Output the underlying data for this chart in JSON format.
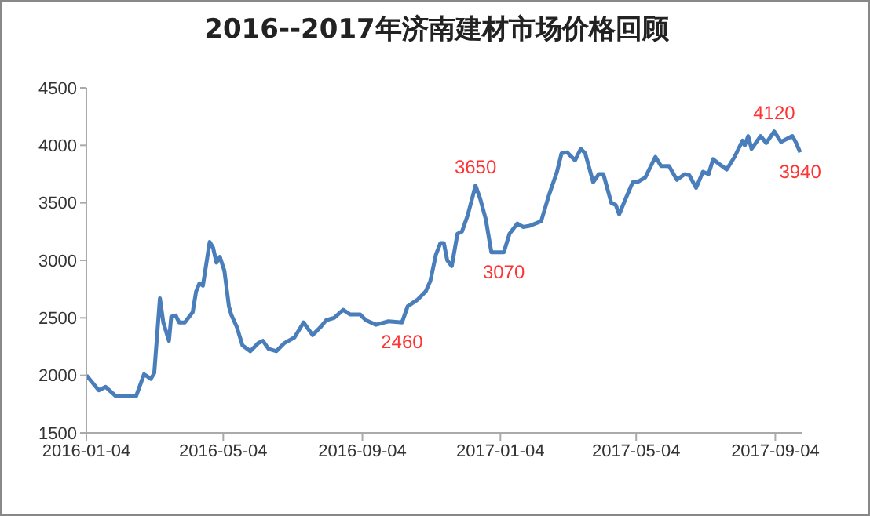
{
  "chart_data": {
    "type": "line",
    "title": "2016--2017年济南建材市场价格回顾",
    "x": [
      "2016-01-04",
      "2016-01-15",
      "2016-01-21",
      "2016-01-30",
      "2016-02-17",
      "2016-02-24",
      "2016-03-01",
      "2016-03-04",
      "2016-03-09",
      "2016-03-12",
      "2016-03-17",
      "2016-03-19",
      "2016-03-23",
      "2016-03-26",
      "2016-03-31",
      "2016-04-07",
      "2016-04-10",
      "2016-04-13",
      "2016-04-16",
      "2016-04-22",
      "2016-04-25",
      "2016-04-28",
      "2016-05-01",
      "2016-05-05",
      "2016-05-09",
      "2016-05-11",
      "2016-05-16",
      "2016-05-21",
      "2016-05-28",
      "2016-06-04",
      "2016-06-08",
      "2016-06-13",
      "2016-06-20",
      "2016-06-27",
      "2016-07-06",
      "2016-07-14",
      "2016-07-22",
      "2016-07-29",
      "2016-08-03",
      "2016-08-10",
      "2016-08-18",
      "2016-08-24",
      "2016-09-02",
      "2016-09-07",
      "2016-09-16",
      "2016-09-27",
      "2016-10-09",
      "2016-10-14",
      "2016-10-23",
      "2016-10-30",
      "2016-11-03",
      "2016-11-08",
      "2016-11-12",
      "2016-11-15",
      "2016-11-18",
      "2016-11-22",
      "2016-11-27",
      "2016-12-01",
      "2016-12-06",
      "2016-12-09",
      "2016-12-13",
      "2016-12-17",
      "2016-12-22",
      "2016-12-27",
      "2017-01-03",
      "2017-01-07",
      "2017-01-12",
      "2017-01-19",
      "2017-01-24",
      "2017-01-30",
      "2017-02-09",
      "2017-02-16",
      "2017-02-23",
      "2017-02-27",
      "2017-03-04",
      "2017-03-11",
      "2017-03-16",
      "2017-03-20",
      "2017-03-27",
      "2017-04-01",
      "2017-04-05",
      "2017-04-12",
      "2017-04-16",
      "2017-04-19",
      "2017-04-24",
      "2017-05-01",
      "2017-05-05",
      "2017-05-12",
      "2017-05-21",
      "2017-05-26",
      "2017-06-02",
      "2017-06-09",
      "2017-06-16",
      "2017-06-20",
      "2017-06-26",
      "2017-07-02",
      "2017-07-07",
      "2017-07-11",
      "2017-07-16",
      "2017-07-23",
      "2017-07-30",
      "2017-08-06",
      "2017-08-08",
      "2017-08-11",
      "2017-08-14",
      "2017-08-22",
      "2017-08-27",
      "2017-09-03",
      "2017-09-09",
      "2017-09-13",
      "2017-09-19",
      "2017-09-22",
      "2017-09-26"
    ],
    "series": [
      {
        "color": "#4a7ebb",
        "values": [
          2000,
          1870,
          1900,
          1820,
          1820,
          2010,
          1970,
          2020,
          2670,
          2460,
          2300,
          2510,
          2520,
          2460,
          2460,
          2550,
          2730,
          2800,
          2780,
          3160,
          3110,
          2980,
          3030,
          2910,
          2600,
          2530,
          2420,
          2260,
          2210,
          2280,
          2300,
          2230,
          2210,
          2280,
          2330,
          2460,
          2350,
          2420,
          2480,
          2500,
          2570,
          2530,
          2530,
          2480,
          2440,
          2470,
          2460,
          2600,
          2660,
          2730,
          2820,
          3050,
          3150,
          3150,
          3000,
          2950,
          3230,
          3250,
          3390,
          3500,
          3650,
          3540,
          3360,
          3070,
          3070,
          3070,
          3230,
          3320,
          3290,
          3300,
          3340,
          3570,
          3770,
          3930,
          3940,
          3870,
          3970,
          3930,
          3680,
          3750,
          3750,
          3500,
          3480,
          3400,
          3520,
          3680,
          3680,
          3720,
          3900,
          3820,
          3820,
          3700,
          3750,
          3740,
          3630,
          3770,
          3750,
          3880,
          3840,
          3790,
          3900,
          4040,
          4000,
          4080,
          3970,
          4080,
          4020,
          4120,
          4030,
          4050,
          4080,
          4030,
          3940
        ]
      }
    ],
    "xlim": [
      "2016-01-04",
      "2017-09-28"
    ],
    "xticks": [
      "2016-01-04",
      "2016-05-04",
      "2016-09-04",
      "2017-01-04",
      "2017-05-04",
      "2017-09-04"
    ],
    "ylim": [
      1500,
      4500
    ],
    "yticks": [
      1500,
      2000,
      2500,
      3000,
      3500,
      4000,
      4500
    ],
    "grid": false,
    "legend": false,
    "marker": "none",
    "line_style": "solid",
    "annotations": [
      {
        "text": "3650",
        "x": "2016-12-13",
        "y": 3650
      },
      {
        "text": "3070",
        "x": "2017-01-07",
        "y": 3070
      },
      {
        "text": "2460",
        "x": "2016-10-09",
        "y": 2460
      },
      {
        "text": "4120",
        "x": "2017-09-03",
        "y": 4120
      },
      {
        "text": "3940",
        "x": "2017-09-26",
        "y": 3940
      }
    ]
  }
}
